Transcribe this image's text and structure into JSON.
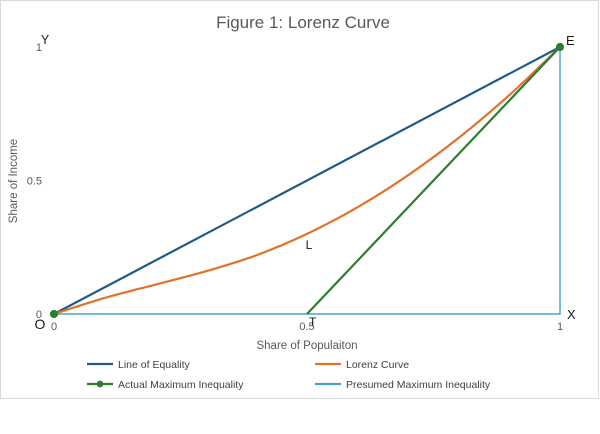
{
  "chart_data": {
    "type": "line",
    "title": "Figure 1: Lorenz Curve",
    "xlabel": "Share of Populaiton",
    "ylabel": "Share of Income",
    "xlim": [
      0,
      1
    ],
    "ylim": [
      0,
      1
    ],
    "x_ticks": [
      {
        "value": 0,
        "label": "0"
      },
      {
        "value": 0.5,
        "label": "0.5"
      },
      {
        "value": 1,
        "label": "1"
      }
    ],
    "y_ticks": [
      {
        "value": 0,
        "label": "0"
      },
      {
        "value": 0.5,
        "label": "0.5"
      },
      {
        "value": 1,
        "label": "1"
      }
    ],
    "grid": false,
    "legend_position": "bottom",
    "series": [
      {
        "name": "Line of Equality",
        "color": "#1f5c85",
        "marker": false,
        "x": [
          0,
          1
        ],
        "y": [
          0,
          1
        ]
      },
      {
        "name": "Lorenz Curve",
        "color": "#e2712b",
        "marker": false,
        "smooth": true,
        "x": [
          0,
          0.1,
          0.2,
          0.3,
          0.4,
          0.5,
          0.6,
          0.7,
          0.8,
          0.9,
          1
        ],
        "y": [
          0,
          0.06,
          0.11,
          0.16,
          0.22,
          0.3,
          0.4,
          0.52,
          0.66,
          0.82,
          1
        ]
      },
      {
        "name": "Actual Maximum Inequality",
        "color": "#2e7d32",
        "marker": true,
        "x": [
          0,
          0.5,
          1
        ],
        "y": [
          null,
          0,
          1
        ],
        "point_markers": [
          [
            0,
            0
          ],
          [
            1,
            1
          ]
        ]
      },
      {
        "name": "Presumed Maximum Inequality",
        "color": "#45a5c8",
        "marker": false,
        "x": [
          0,
          1,
          1
        ],
        "y": [
          0,
          0,
          1
        ]
      }
    ],
    "annotations": [
      {
        "text": "Y",
        "x": 0,
        "y": 1
      },
      {
        "text": "E",
        "x": 1,
        "y": 1
      },
      {
        "text": "L",
        "x": 0.5,
        "y": 0.3
      },
      {
        "text": "O",
        "x": 0,
        "y": 0
      },
      {
        "text": "T",
        "x": 0.5,
        "y": 0
      },
      {
        "text": "X",
        "x": 1,
        "y": 0
      }
    ]
  }
}
